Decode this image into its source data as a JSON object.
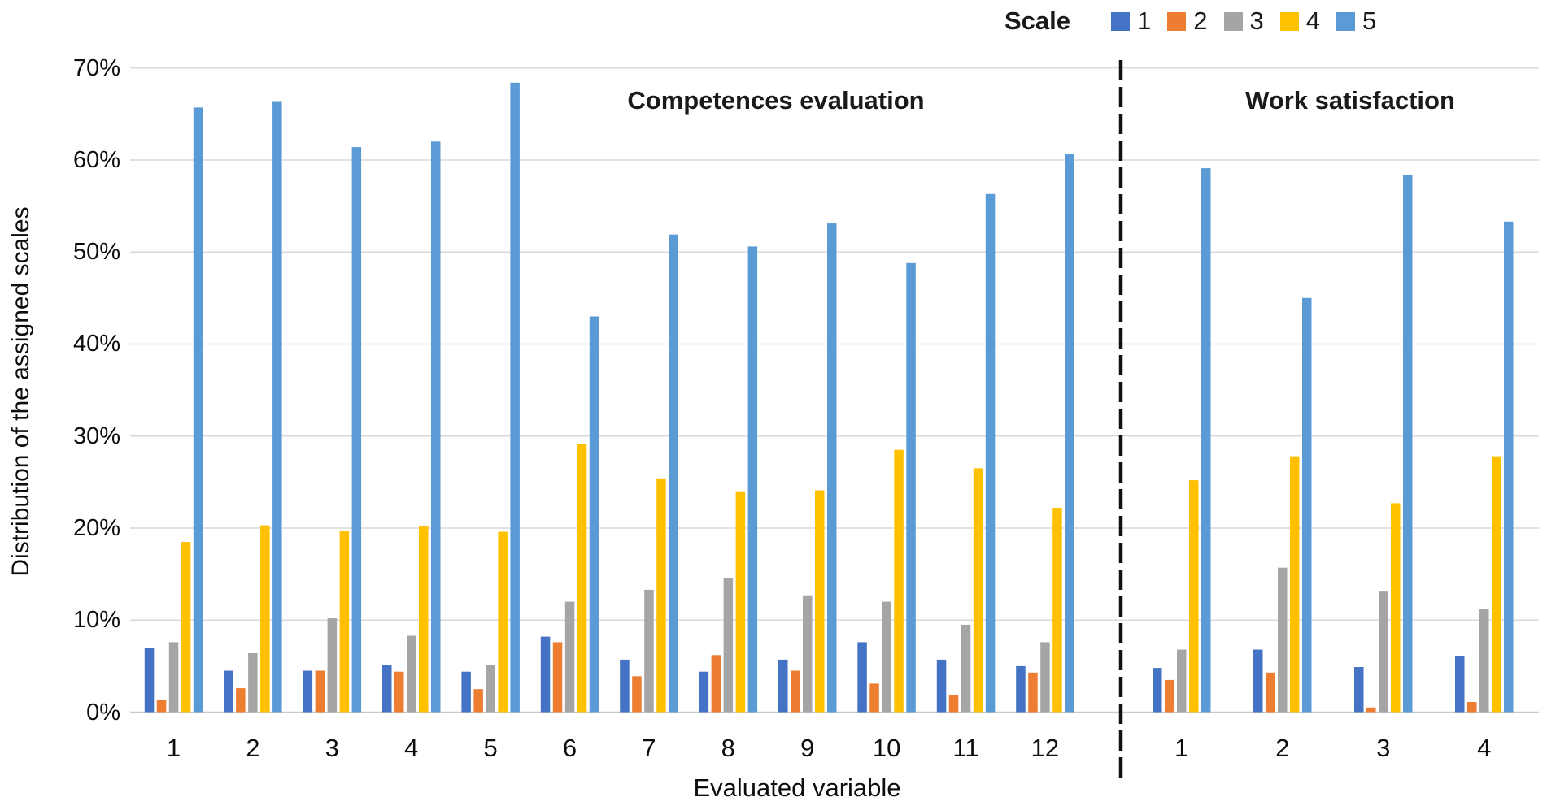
{
  "figure": {
    "y_axis_title": "Distribution of the assigned scales",
    "x_axis_title": "Evaluated variable",
    "legend_title": "Scale"
  },
  "colors": {
    "background": "#FFFFFF",
    "gridline": "#D9D9D9",
    "axis_line": "#C9C9C9",
    "divider": "#111111",
    "text": "#0d0d0d",
    "series": [
      "#4472C4",
      "#ED7D31",
      "#A5A5A5",
      "#FFC000",
      "#5B9BD5"
    ]
  },
  "chart_data": {
    "type": "bar",
    "title": "",
    "xlabel": "Evaluated variable",
    "ylabel": "Distribution of the assigned scales",
    "ylim": [
      0,
      70
    ],
    "y_ticks": [
      "0%",
      "10%",
      "20%",
      "30%",
      "40%",
      "50%",
      "60%",
      "70%"
    ],
    "grid": true,
    "legend": {
      "title": "Scale",
      "entries": [
        "1",
        "2",
        "3",
        "4",
        "5"
      ],
      "position": "top-right"
    },
    "panels": [
      {
        "title": "Competences evaluation",
        "categories": [
          "1",
          "2",
          "3",
          "4",
          "5",
          "6",
          "7",
          "8",
          "9",
          "10",
          "11",
          "12"
        ],
        "series": [
          {
            "name": "1",
            "color": "#4472C4",
            "values": [
              7.0,
              4.5,
              4.5,
              5.1,
              4.4,
              8.2,
              5.7,
              4.4,
              5.7,
              7.6,
              5.7,
              5.0
            ]
          },
          {
            "name": "2",
            "color": "#ED7D31",
            "values": [
              1.3,
              2.6,
              4.5,
              4.4,
              2.5,
              7.6,
              3.9,
              6.2,
              4.5,
              3.1,
              1.9,
              4.3
            ]
          },
          {
            "name": "3",
            "color": "#A5A5A5",
            "values": [
              7.6,
              6.4,
              10.2,
              8.3,
              5.1,
              12.0,
              13.3,
              14.6,
              12.7,
              12.0,
              9.5,
              7.6
            ]
          },
          {
            "name": "4",
            "color": "#FFC000",
            "values": [
              18.5,
              20.3,
              19.7,
              20.2,
              19.6,
              29.1,
              25.4,
              24.0,
              24.1,
              28.5,
              26.5,
              22.2
            ]
          },
          {
            "name": "5",
            "color": "#5B9BD5",
            "values": [
              65.7,
              66.4,
              61.4,
              62.0,
              68.4,
              43.0,
              51.9,
              50.6,
              53.1,
              48.8,
              56.3,
              60.7
            ]
          }
        ]
      },
      {
        "title": "Work satisfaction",
        "categories": [
          "1",
          "2",
          "3",
          "4"
        ],
        "series": [
          {
            "name": "1",
            "color": "#4472C4",
            "values": [
              4.8,
              6.8,
              4.9,
              6.1
            ]
          },
          {
            "name": "2",
            "color": "#ED7D31",
            "values": [
              3.5,
              4.3,
              0.5,
              1.1
            ]
          },
          {
            "name": "3",
            "color": "#A5A5A5",
            "values": [
              6.8,
              15.7,
              13.1,
              11.2
            ]
          },
          {
            "name": "4",
            "color": "#FFC000",
            "values": [
              25.2,
              27.8,
              22.7,
              27.8
            ]
          },
          {
            "name": "5",
            "color": "#5B9BD5",
            "values": [
              59.1,
              45.0,
              58.4,
              53.3
            ]
          }
        ]
      }
    ]
  }
}
